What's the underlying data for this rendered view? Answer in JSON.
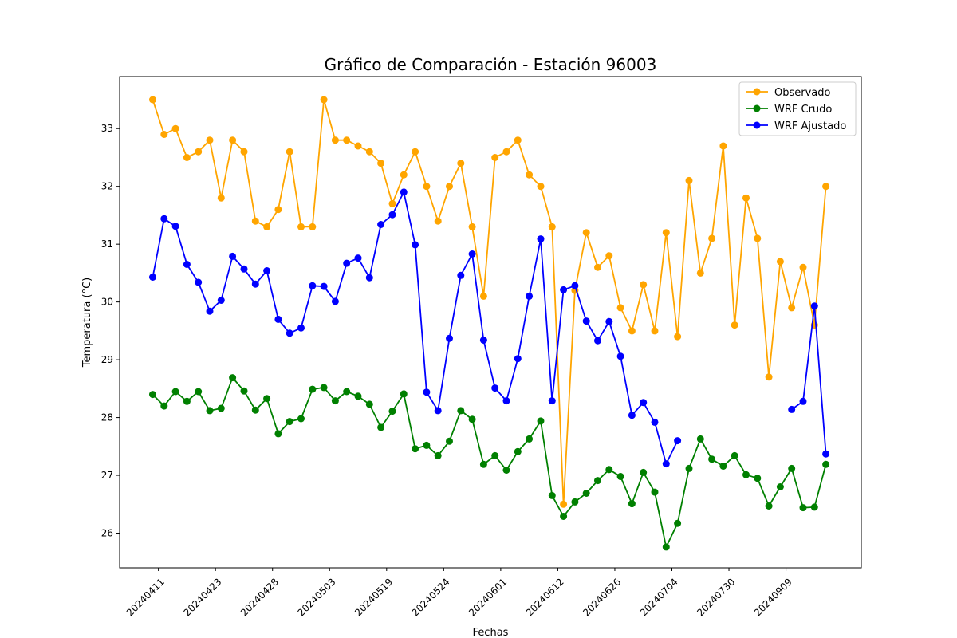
{
  "chart_data": {
    "type": "line",
    "title": "Gráfico de Comparación - Estación 96003",
    "xlabel": "Fechas",
    "ylabel": "Temperatura (°C)",
    "ylim": [
      25.4,
      33.9
    ],
    "yticks": [
      26,
      27,
      28,
      29,
      30,
      31,
      32,
      33
    ],
    "xtick_labels": [
      "20240411",
      "20240423",
      "20240428",
      "20240503",
      "20240519",
      "20240524",
      "20240601",
      "20240612",
      "20240626",
      "20240704",
      "20240730",
      "20240909"
    ],
    "xtick_positions": [
      0.5,
      5.5,
      10.5,
      15.5,
      20.5,
      25.5,
      30.5,
      35.5,
      40.5,
      45.5,
      50.5,
      55.5
    ],
    "xlim": [
      -2.9,
      62.1
    ],
    "grid": false,
    "legend_position": "top-right",
    "series": [
      {
        "name": "Observado",
        "color": "#FFA500",
        "values": [
          33.5,
          32.9,
          33.0,
          32.5,
          32.6,
          32.8,
          31.8,
          32.8,
          32.6,
          31.4,
          31.3,
          31.6,
          32.6,
          31.3,
          31.3,
          33.5,
          32.8,
          32.8,
          32.7,
          32.6,
          32.4,
          31.7,
          32.2,
          32.6,
          32.0,
          31.4,
          32.0,
          32.4,
          31.3,
          30.1,
          32.5,
          32.6,
          32.8,
          32.2,
          32.0,
          31.3,
          26.5,
          30.2,
          31.2,
          30.6,
          30.8,
          29.9,
          29.5,
          30.3,
          29.5,
          31.2,
          29.4,
          32.1,
          30.5,
          31.1,
          32.7,
          29.6,
          31.8,
          31.1,
          28.7,
          30.7,
          29.9,
          30.6,
          29.6,
          32.0
        ]
      },
      {
        "name": "WRF Crudo",
        "color": "#008000",
        "values": [
          28.4,
          28.2,
          28.45,
          28.28,
          28.45,
          28.12,
          28.16,
          28.69,
          28.46,
          28.13,
          28.33,
          27.72,
          27.93,
          27.98,
          28.49,
          28.52,
          28.29,
          28.45,
          28.37,
          28.23,
          27.83,
          28.11,
          28.41,
          27.46,
          27.52,
          27.34,
          27.59,
          28.12,
          27.97,
          27.19,
          27.34,
          27.09,
          27.41,
          27.63,
          27.94,
          26.65,
          26.29,
          26.54,
          26.69,
          26.91,
          27.1,
          26.98,
          26.51,
          27.05,
          26.71,
          25.76,
          26.17,
          27.12,
          27.63,
          27.28,
          27.16,
          27.34,
          27.01,
          26.95,
          26.47,
          26.8,
          27.12,
          26.44,
          26.45,
          27.19
        ]
      },
      {
        "name": "WRF Ajustado",
        "color": "#0000FF",
        "values": [
          30.43,
          31.44,
          31.31,
          30.65,
          30.34,
          29.84,
          30.03,
          30.79,
          30.57,
          30.31,
          30.54,
          29.7,
          29.46,
          29.55,
          30.28,
          30.27,
          30.01,
          30.67,
          30.76,
          30.42,
          31.34,
          31.51,
          31.9,
          30.99,
          28.44,
          28.12,
          29.37,
          30.46,
          30.83,
          29.34,
          28.51,
          28.29,
          29.02,
          30.1,
          31.09,
          28.29,
          30.21,
          30.28,
          29.67,
          29.33,
          29.66,
          29.06,
          28.04,
          28.26,
          27.92,
          27.2,
          27.6,
          null,
          null,
          null,
          null,
          null,
          null,
          null,
          null,
          null,
          28.14,
          28.28,
          29.93,
          27.37
        ]
      }
    ]
  }
}
